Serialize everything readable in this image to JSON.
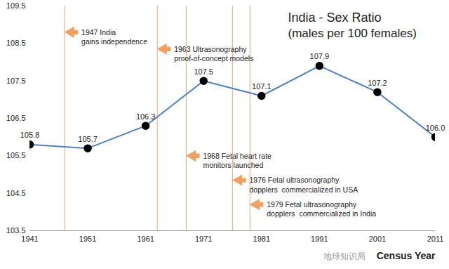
{
  "chart_data": {
    "type": "line",
    "title": "India - Sex Ratio",
    "subtitle": "(males per 100 females)",
    "x_label": "Census Year",
    "x": [
      1941,
      1951,
      1961,
      1971,
      1981,
      1991,
      2001,
      2011
    ],
    "values": [
      105.8,
      105.7,
      106.3,
      107.5,
      107.1,
      107.9,
      107.2,
      106.0
    ],
    "value_labels": [
      "105.8",
      "105.7",
      "106.3",
      "107.5",
      "107.1",
      "107.9",
      "107.2",
      "106.0"
    ],
    "data_labels": true,
    "color": "#4f81bd",
    "marker": "circle",
    "xlim": [
      1941,
      2011
    ],
    "xticks": [
      1941,
      1951,
      1961,
      1971,
      1981,
      1991,
      2001,
      2011
    ],
    "ylim": [
      103.5,
      109.5
    ],
    "yticks": [
      103.5,
      104.5,
      105.5,
      106.5,
      107.5,
      108.5,
      109.5
    ],
    "grid": false,
    "annotations": [
      {
        "x": 1947,
        "y": 108.8,
        "text": "1947 India\ngains independence"
      },
      {
        "x": 1963,
        "y": 108.35,
        "text": "1963 Ultrasonography\nproof-of-concept models"
      },
      {
        "x": 1968,
        "y": 105.5,
        "text": "1968 Fetal heart rate\nmonitors launched"
      },
      {
        "x": 1976,
        "y": 104.85,
        "text": "1976 Fetal ultrasonography\ndopplers  commercialized in USA"
      },
      {
        "x": 1979,
        "y": 104.2,
        "text": "1979 Fetal ultrasonography\ndopplers  commercialized in India"
      }
    ],
    "watermark": "地球知识局"
  }
}
